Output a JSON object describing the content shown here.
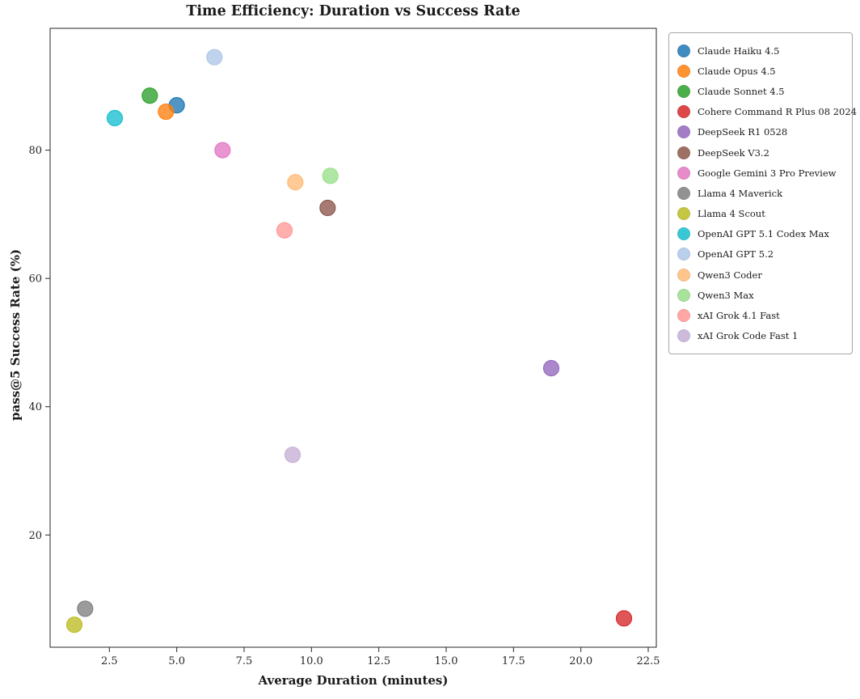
{
  "page": {
    "background": "#ffffff"
  },
  "chart_data": {
    "type": "scatter",
    "title": "Time Efficiency: Duration vs Success Rate",
    "xlabel": "Average Duration (minutes)",
    "ylabel": "pass@5 Success Rate (%)",
    "xlim": [
      0.3,
      22.8
    ],
    "ylim": [
      2.5,
      99.0
    ],
    "xticks": [
      2.5,
      5.0,
      7.5,
      10.0,
      12.5,
      15.0,
      17.5,
      20.0,
      22.5
    ],
    "xtick_labels": [
      "2.5",
      "5.0",
      "7.5",
      "10.0",
      "12.5",
      "15.0",
      "17.5",
      "20.0",
      "22.5"
    ],
    "yticks": [
      20,
      40,
      60,
      80
    ],
    "ytick_labels": [
      "20",
      "40",
      "60",
      "80"
    ],
    "grid": false,
    "legend_position": "outside-right",
    "marker_opacity": 0.78,
    "series": [
      {
        "name": "Claude Haiku 4.5",
        "color": "#1f77b4",
        "x": 5.0,
        "y": 87.0
      },
      {
        "name": "Claude Opus 4.5",
        "color": "#ff7f0e",
        "x": 4.6,
        "y": 86.0
      },
      {
        "name": "Claude Sonnet 4.5",
        "color": "#2ca02c",
        "x": 4.0,
        "y": 88.5
      },
      {
        "name": "Cohere Command R Plus 08 2024",
        "color": "#d62728",
        "x": 21.6,
        "y": 7.0
      },
      {
        "name": "DeepSeek R1 0528",
        "color": "#9467bd",
        "x": 18.9,
        "y": 46.0
      },
      {
        "name": "DeepSeek V3.2",
        "color": "#8c564b",
        "x": 10.6,
        "y": 71.0
      },
      {
        "name": "Google Gemini 3 Pro Preview",
        "color": "#e377c2",
        "x": 6.7,
        "y": 80.0
      },
      {
        "name": "Llama 4 Maverick",
        "color": "#7f7f7f",
        "x": 1.6,
        "y": 8.5
      },
      {
        "name": "Llama 4 Scout",
        "color": "#bcbd22",
        "x": 1.2,
        "y": 6.0
      },
      {
        "name": "OpenAI GPT 5.1 Codex Max",
        "color": "#17becf",
        "x": 2.7,
        "y": 85.0
      },
      {
        "name": "OpenAI GPT 5.2",
        "color": "#aec7e8",
        "x": 6.4,
        "y": 94.5
      },
      {
        "name": "Qwen3 Coder",
        "color": "#ffbb78",
        "x": 9.4,
        "y": 75.0
      },
      {
        "name": "Qwen3 Max",
        "color": "#98df8a",
        "x": 10.7,
        "y": 76.0
      },
      {
        "name": "xAI Grok 4.1 Fast",
        "color": "#ff9896",
        "x": 9.0,
        "y": 67.5
      },
      {
        "name": "xAI Grok Code Fast 1",
        "color": "#c5b0d5",
        "x": 9.3,
        "y": 32.5
      }
    ]
  }
}
